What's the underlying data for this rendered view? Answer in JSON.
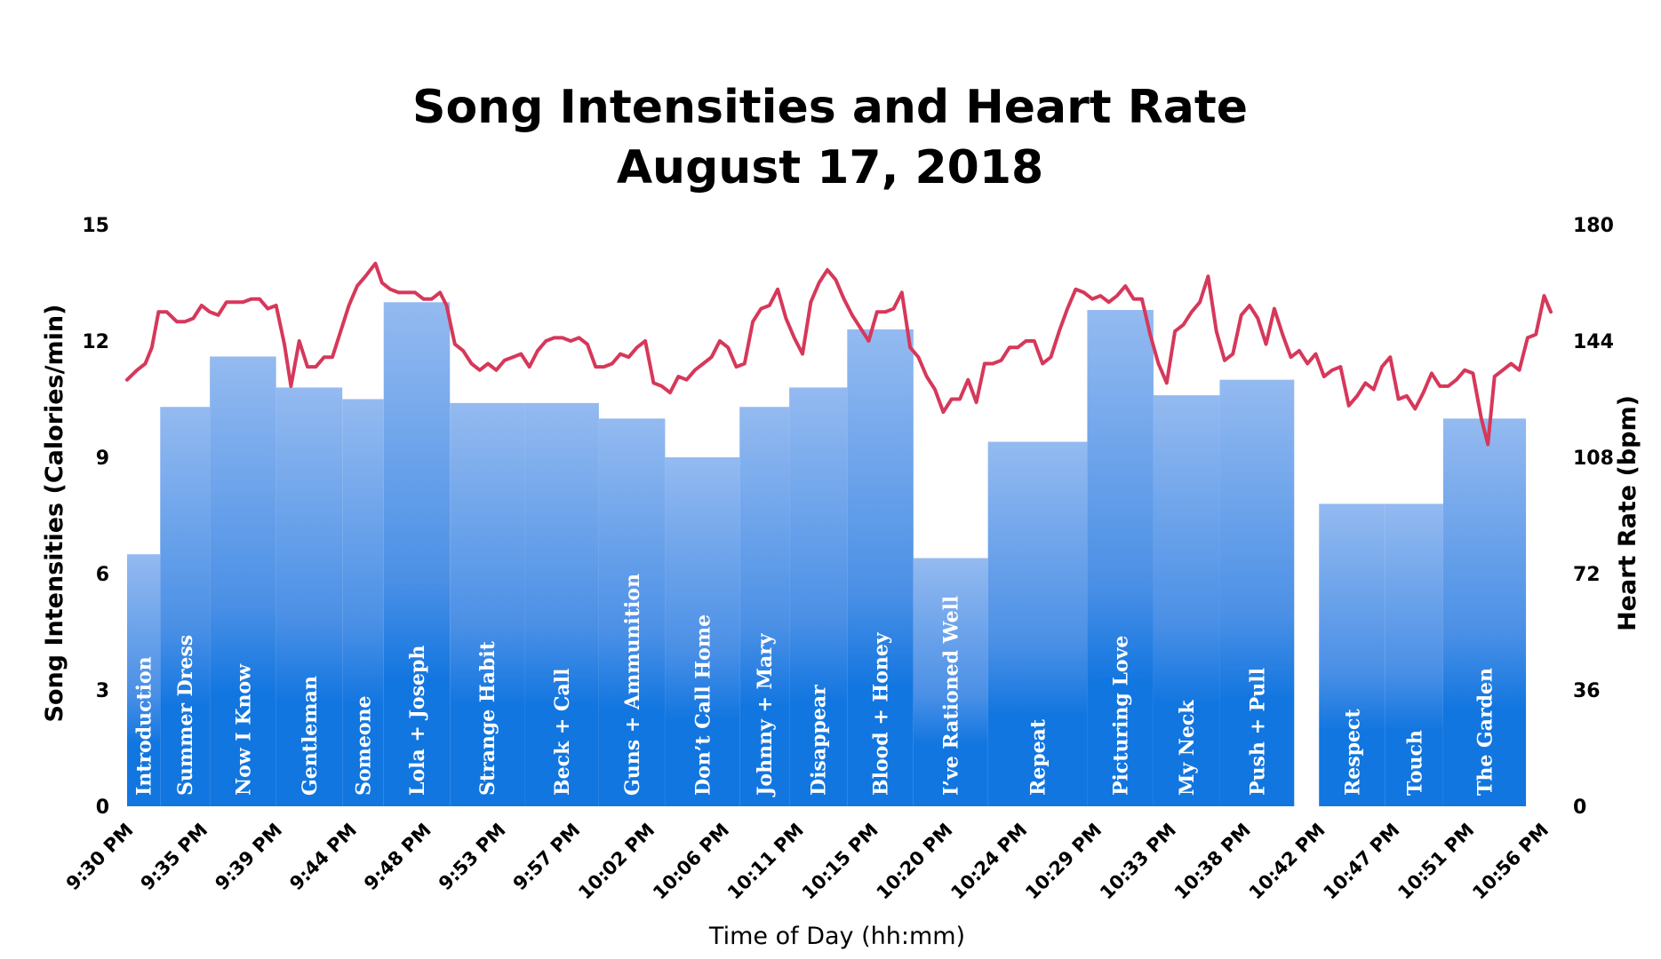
{
  "chart_data": {
    "type": "bar+line",
    "title": "Song Intensities and Heart Rate",
    "subtitle": "August 17, 2018",
    "xlabel": "Time of Day (hh:mm)",
    "ylabel_left": "Song Intensities (Calories/min)",
    "ylabel_right": "Heart Rate (bpm)",
    "x_range_minutes": [
      0,
      86
    ],
    "ylim_left": [
      0,
      15
    ],
    "ylim_right": [
      0,
      180
    ],
    "yticks_left": [
      "0",
      "3",
      "6",
      "9",
      "12",
      "15"
    ],
    "yticks_right": [
      "0",
      "36",
      "72",
      "108",
      "144",
      "180"
    ],
    "xticks": [
      {
        "t": 0,
        "label": "9:30 PM"
      },
      {
        "t": 4.5,
        "label": "9:35 PM"
      },
      {
        "t": 9,
        "label": "9:39 PM"
      },
      {
        "t": 13.5,
        "label": "9:44 PM"
      },
      {
        "t": 18,
        "label": "9:48 PM"
      },
      {
        "t": 22.5,
        "label": "9:53 PM"
      },
      {
        "t": 27,
        "label": "9:57 PM"
      },
      {
        "t": 31.5,
        "label": "10:02 PM"
      },
      {
        "t": 36,
        "label": "10:06 PM"
      },
      {
        "t": 40.5,
        "label": "10:11 PM"
      },
      {
        "t": 45,
        "label": "10:15 PM"
      },
      {
        "t": 49.5,
        "label": "10:20 PM"
      },
      {
        "t": 54,
        "label": "10:24 PM"
      },
      {
        "t": 58.5,
        "label": "10:29 PM"
      },
      {
        "t": 63,
        "label": "10:33 PM"
      },
      {
        "t": 67.5,
        "label": "10:38 PM"
      },
      {
        "t": 72,
        "label": "10:42 PM"
      },
      {
        "t": 76.5,
        "label": "10:47 PM"
      },
      {
        "t": 81,
        "label": "10:51 PM"
      },
      {
        "t": 85.5,
        "label": "10:56 PM"
      }
    ],
    "songs": [
      {
        "name": "Introduction",
        "start": 0,
        "end": 2,
        "intensity": 6.5
      },
      {
        "name": "Summer Dress",
        "start": 2,
        "end": 5,
        "intensity": 10.3
      },
      {
        "name": "Now I Know",
        "start": 5,
        "end": 9,
        "intensity": 11.6
      },
      {
        "name": "Gentleman",
        "start": 9,
        "end": 13,
        "intensity": 10.8
      },
      {
        "name": "Someone",
        "start": 13,
        "end": 15.5,
        "intensity": 10.5
      },
      {
        "name": "Lola + Joseph",
        "start": 15.5,
        "end": 19.5,
        "intensity": 13.0
      },
      {
        "name": "Strange Habit",
        "start": 19.5,
        "end": 24,
        "intensity": 10.4
      },
      {
        "name": "Beck + Call",
        "start": 24,
        "end": 28.5,
        "intensity": 10.4
      },
      {
        "name": "Guns + Ammunition",
        "start": 28.5,
        "end": 32.5,
        "intensity": 10.0
      },
      {
        "name": "Don’t Call Home",
        "start": 32.5,
        "end": 37,
        "intensity": 9.0
      },
      {
        "name": "Johnny + Mary",
        "start": 37,
        "end": 40,
        "intensity": 10.3
      },
      {
        "name": "Disappear",
        "start": 40,
        "end": 43.5,
        "intensity": 10.8
      },
      {
        "name": "Blood + Honey",
        "start": 43.5,
        "end": 47.5,
        "intensity": 12.3
      },
      {
        "name": "I’ve Rationed Well",
        "start": 47.5,
        "end": 52,
        "intensity": 6.4
      },
      {
        "name": "Repeat",
        "start": 52,
        "end": 58,
        "intensity": 9.4
      },
      {
        "name": "Picturing Love",
        "start": 58,
        "end": 62,
        "intensity": 12.8
      },
      {
        "name": "My Neck",
        "start": 62,
        "end": 66,
        "intensity": 10.6
      },
      {
        "name": "Push + Pull",
        "start": 66,
        "end": 70.5,
        "intensity": 11.0
      },
      {
        "name": "Respect",
        "start": 72,
        "end": 76,
        "intensity": 7.8
      },
      {
        "name": "Touch",
        "start": 76,
        "end": 79.5,
        "intensity": 7.8
      },
      {
        "name": "The Garden",
        "start": 79.5,
        "end": 84.5,
        "intensity": 10.0
      }
    ],
    "heart_rate": [
      [
        0,
        132
      ],
      [
        0.6,
        135
      ],
      [
        1.1,
        137
      ],
      [
        1.5,
        142
      ],
      [
        1.9,
        153
      ],
      [
        2.4,
        153
      ],
      [
        3.0,
        150
      ],
      [
        3.5,
        150
      ],
      [
        4.0,
        151
      ],
      [
        4.5,
        155
      ],
      [
        5.0,
        153
      ],
      [
        5.5,
        152
      ],
      [
        6.0,
        156
      ],
      [
        6.5,
        156
      ],
      [
        7.0,
        156
      ],
      [
        7.5,
        157
      ],
      [
        8.0,
        157
      ],
      [
        8.5,
        154
      ],
      [
        9.0,
        155
      ],
      [
        9.5,
        143
      ],
      [
        9.9,
        130
      ],
      [
        10.4,
        144
      ],
      [
        10.9,
        136
      ],
      [
        11.4,
        136
      ],
      [
        11.9,
        139
      ],
      [
        12.4,
        139
      ],
      [
        12.9,
        147
      ],
      [
        13.4,
        155
      ],
      [
        13.9,
        161
      ],
      [
        14.4,
        164
      ],
      [
        15.0,
        168
      ],
      [
        15.4,
        162
      ],
      [
        15.9,
        160
      ],
      [
        16.4,
        159
      ],
      [
        16.9,
        159
      ],
      [
        17.4,
        159
      ],
      [
        17.9,
        157
      ],
      [
        18.4,
        157
      ],
      [
        18.9,
        159
      ],
      [
        19.3,
        155
      ],
      [
        19.8,
        143
      ],
      [
        20.3,
        141
      ],
      [
        20.8,
        137
      ],
      [
        21.3,
        135
      ],
      [
        21.8,
        137
      ],
      [
        22.3,
        135
      ],
      [
        22.8,
        138
      ],
      [
        23.3,
        139
      ],
      [
        23.8,
        140
      ],
      [
        24.3,
        136
      ],
      [
        24.8,
        141
      ],
      [
        25.3,
        144
      ],
      [
        25.8,
        145
      ],
      [
        26.3,
        145
      ],
      [
        26.8,
        144
      ],
      [
        27.3,
        145
      ],
      [
        27.8,
        143
      ],
      [
        28.3,
        136
      ],
      [
        28.8,
        136
      ],
      [
        29.3,
        137
      ],
      [
        29.8,
        140
      ],
      [
        30.3,
        139
      ],
      [
        30.8,
        142
      ],
      [
        31.3,
        144
      ],
      [
        31.8,
        131
      ],
      [
        32.3,
        130
      ],
      [
        32.8,
        128
      ],
      [
        33.3,
        133
      ],
      [
        33.8,
        132
      ],
      [
        34.3,
        135
      ],
      [
        34.8,
        137
      ],
      [
        35.3,
        139
      ],
      [
        35.8,
        144
      ],
      [
        36.3,
        142
      ],
      [
        36.8,
        136
      ],
      [
        37.3,
        137
      ],
      [
        37.8,
        150
      ],
      [
        38.3,
        154
      ],
      [
        38.8,
        155
      ],
      [
        39.3,
        160
      ],
      [
        39.8,
        151
      ],
      [
        40.3,
        145
      ],
      [
        40.8,
        140
      ],
      [
        41.3,
        156
      ],
      [
        41.8,
        162
      ],
      [
        42.3,
        166
      ],
      [
        42.8,
        163
      ],
      [
        43.3,
        157
      ],
      [
        43.8,
        152
      ],
      [
        44.3,
        148
      ],
      [
        44.8,
        144
      ],
      [
        45.3,
        153
      ],
      [
        45.8,
        153
      ],
      [
        46.3,
        154
      ],
      [
        46.8,
        159
      ],
      [
        47.3,
        142
      ],
      [
        47.8,
        139
      ],
      [
        48.3,
        133
      ],
      [
        48.8,
        129
      ],
      [
        49.3,
        122
      ],
      [
        49.8,
        126
      ],
      [
        50.3,
        126
      ],
      [
        50.8,
        132
      ],
      [
        51.3,
        125
      ],
      [
        51.8,
        137
      ],
      [
        52.3,
        137
      ],
      [
        52.8,
        138
      ],
      [
        53.3,
        142
      ],
      [
        53.8,
        142
      ],
      [
        54.3,
        144
      ],
      [
        54.8,
        144
      ],
      [
        55.3,
        137
      ],
      [
        55.8,
        139
      ],
      [
        56.3,
        147
      ],
      [
        56.8,
        154
      ],
      [
        57.3,
        160
      ],
      [
        57.8,
        159
      ],
      [
        58.3,
        157
      ],
      [
        58.8,
        158
      ],
      [
        59.3,
        156
      ],
      [
        59.8,
        158
      ],
      [
        60.3,
        161
      ],
      [
        60.8,
        157
      ],
      [
        61.3,
        157
      ],
      [
        61.8,
        146
      ],
      [
        62.3,
        137
      ],
      [
        62.8,
        131
      ],
      [
        63.3,
        147
      ],
      [
        63.8,
        149
      ],
      [
        64.3,
        153
      ],
      [
        64.8,
        156
      ],
      [
        65.3,
        164
      ],
      [
        65.8,
        147
      ],
      [
        66.3,
        138
      ],
      [
        66.8,
        140
      ],
      [
        67.3,
        152
      ],
      [
        67.8,
        155
      ],
      [
        68.3,
        151
      ],
      [
        68.8,
        143
      ],
      [
        69.3,
        154
      ],
      [
        69.8,
        146
      ],
      [
        70.3,
        139
      ],
      [
        70.8,
        141
      ],
      [
        71.3,
        137
      ],
      [
        71.8,
        140
      ],
      [
        72.3,
        133
      ],
      [
        72.8,
        135
      ],
      [
        73.3,
        136
      ],
      [
        73.8,
        124
      ],
      [
        74.3,
        127
      ],
      [
        74.8,
        131
      ],
      [
        75.3,
        129
      ],
      [
        75.8,
        136
      ],
      [
        76.3,
        139
      ],
      [
        76.8,
        126
      ],
      [
        77.3,
        127
      ],
      [
        77.8,
        123
      ],
      [
        78.3,
        128
      ],
      [
        78.8,
        134
      ],
      [
        79.3,
        130
      ],
      [
        79.8,
        130
      ],
      [
        80.3,
        132
      ],
      [
        80.8,
        135
      ],
      [
        81.3,
        134
      ],
      [
        81.8,
        120
      ],
      [
        82.2,
        112
      ],
      [
        82.6,
        133
      ],
      [
        83.1,
        135
      ],
      [
        83.6,
        137
      ],
      [
        84.1,
        135
      ],
      [
        84.6,
        145
      ],
      [
        85.1,
        146
      ],
      [
        85.6,
        158
      ],
      [
        86,
        153
      ]
    ],
    "colors": {
      "bar_top": "#94baf0",
      "bar_bottom": "#1276e0",
      "line": "#d6385a"
    }
  }
}
